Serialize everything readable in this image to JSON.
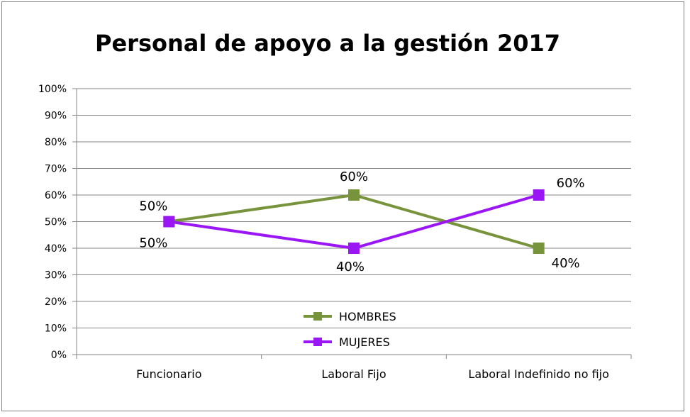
{
  "chart_data": {
    "type": "line",
    "title": "Personal de apoyo a la gestión 2017",
    "categories": [
      "Funcionario",
      "Laboral Fijo",
      "Laboral Indefinido no fijo"
    ],
    "y_ticks": [
      "0%",
      "10%",
      "20%",
      "30%",
      "40%",
      "50%",
      "60%",
      "70%",
      "80%",
      "90%",
      "100%"
    ],
    "ylim": [
      0,
      100
    ],
    "grid": true,
    "legend_position": "bottom-center",
    "series": [
      {
        "name": "HOMBRES",
        "values": [
          50,
          60,
          40
        ],
        "labels": [
          "50%",
          "60%",
          "40%"
        ],
        "color": "#77933c"
      },
      {
        "name": "MUJERES",
        "values": [
          50,
          40,
          60
        ],
        "labels": [
          "50%",
          "40%",
          "60%"
        ],
        "color": "#9b16f5"
      }
    ]
  }
}
